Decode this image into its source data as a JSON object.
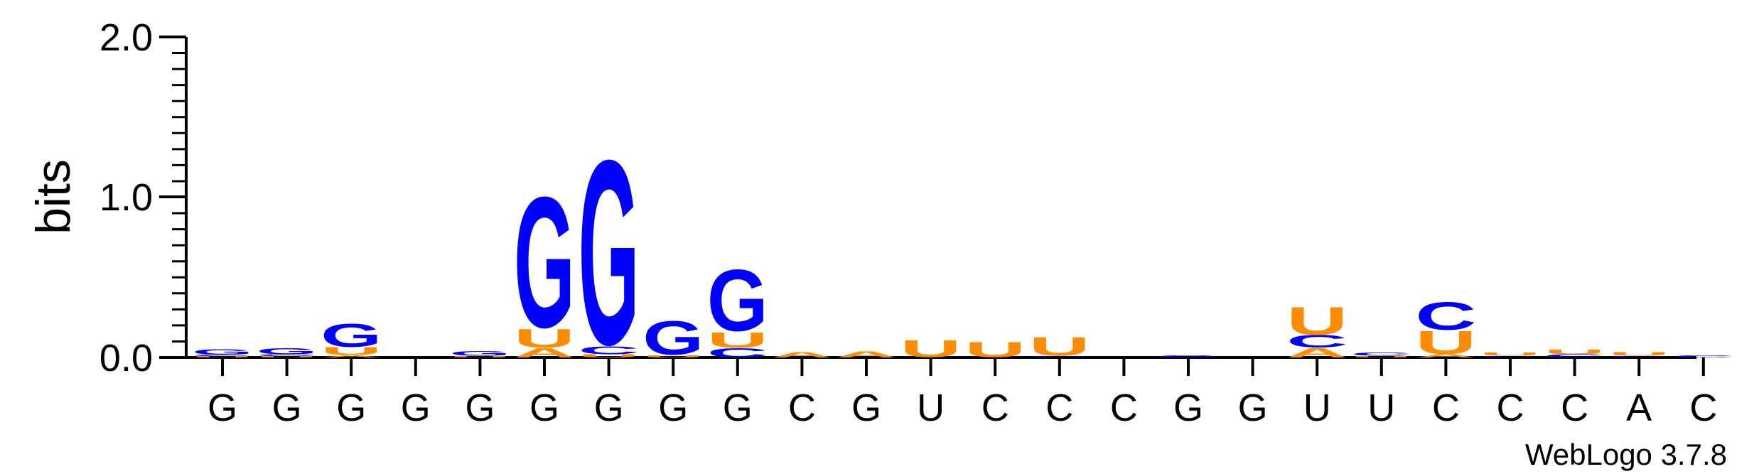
{
  "chart_data": {
    "type": "sequence-logo",
    "ylabel": "bits",
    "ylim": [
      0,
      2.0
    ],
    "yticks": [
      "0.0",
      "1.0",
      "2.0"
    ],
    "credit": "WebLogo 3.7.8",
    "colors": {
      "G": "#0000ff",
      "C": "#0000ff",
      "U": "#ff8c00",
      "A": "#ff8c00"
    },
    "positions": [
      {
        "label": "G",
        "stack": [
          {
            "letter": "G",
            "bits": 0.035
          },
          {
            "letter": "C",
            "bits": 0.01
          },
          {
            "letter": "U",
            "bits": 0.008
          }
        ]
      },
      {
        "label": "G",
        "stack": [
          {
            "letter": "G",
            "bits": 0.04
          },
          {
            "letter": "C",
            "bits": 0.012
          },
          {
            "letter": "U",
            "bits": 0.008
          }
        ]
      },
      {
        "label": "G",
        "stack": [
          {
            "letter": "G",
            "bits": 0.15
          },
          {
            "letter": "U",
            "bits": 0.05
          },
          {
            "letter": "A",
            "bits": 0.015
          }
        ]
      },
      {
        "label": "G",
        "stack": []
      },
      {
        "label": "G",
        "stack": [
          {
            "letter": "G",
            "bits": 0.03
          },
          {
            "letter": "U",
            "bits": 0.01
          }
        ]
      },
      {
        "label": "G",
        "stack": [
          {
            "letter": "G",
            "bits": 0.85
          },
          {
            "letter": "U",
            "bits": 0.12
          },
          {
            "letter": "A",
            "bits": 0.06
          }
        ]
      },
      {
        "label": "G",
        "stack": [
          {
            "letter": "G",
            "bits": 1.2
          },
          {
            "letter": "C",
            "bits": 0.05
          },
          {
            "letter": "U",
            "bits": 0.02
          }
        ]
      },
      {
        "label": "G",
        "stack": [
          {
            "letter": "G",
            "bits": 0.22
          },
          {
            "letter": "U",
            "bits": 0.015
          }
        ]
      },
      {
        "label": "G",
        "stack": [
          {
            "letter": "G",
            "bits": 0.4
          },
          {
            "letter": "U",
            "bits": 0.1
          },
          {
            "letter": "C",
            "bits": 0.06
          }
        ]
      },
      {
        "label": "C",
        "stack": [
          {
            "letter": "A",
            "bits": 0.035
          }
        ]
      },
      {
        "label": "G",
        "stack": [
          {
            "letter": "A",
            "bits": 0.04
          }
        ]
      },
      {
        "label": "U",
        "stack": [
          {
            "letter": "U",
            "bits": 0.11
          }
        ]
      },
      {
        "label": "C",
        "stack": [
          {
            "letter": "U",
            "bits": 0.1
          }
        ]
      },
      {
        "label": "C",
        "stack": [
          {
            "letter": "U",
            "bits": 0.12
          },
          {
            "letter": "C",
            "bits": 0.01
          }
        ]
      },
      {
        "label": "C",
        "stack": []
      },
      {
        "label": "G",
        "stack": [
          {
            "letter": "G",
            "bits": 0.015
          }
        ]
      },
      {
        "label": "G",
        "stack": []
      },
      {
        "label": "U",
        "stack": [
          {
            "letter": "U",
            "bits": 0.18
          },
          {
            "letter": "C",
            "bits": 0.08
          },
          {
            "letter": "A",
            "bits": 0.06
          }
        ]
      },
      {
        "label": "U",
        "stack": [
          {
            "letter": "C",
            "bits": 0.02
          },
          {
            "letter": "U",
            "bits": 0.01
          }
        ]
      },
      {
        "label": "C",
        "stack": [
          {
            "letter": "C",
            "bits": 0.18
          },
          {
            "letter": "U",
            "bits": 0.15
          },
          {
            "letter": "A",
            "bits": 0.02
          }
        ]
      },
      {
        "label": "C",
        "stack": [
          {
            "letter": "U",
            "bits": 0.02
          },
          {
            "letter": "C",
            "bits": 0.01
          }
        ]
      },
      {
        "label": "C",
        "stack": [
          {
            "letter": "U",
            "bits": 0.03
          },
          {
            "letter": "C",
            "bits": 0.02
          }
        ]
      },
      {
        "label": "A",
        "stack": [
          {
            "letter": "U",
            "bits": 0.025
          },
          {
            "letter": "C",
            "bits": 0.01
          }
        ]
      },
      {
        "label": "C",
        "stack": [
          {
            "letter": "C",
            "bits": 0.015
          }
        ]
      }
    ]
  }
}
